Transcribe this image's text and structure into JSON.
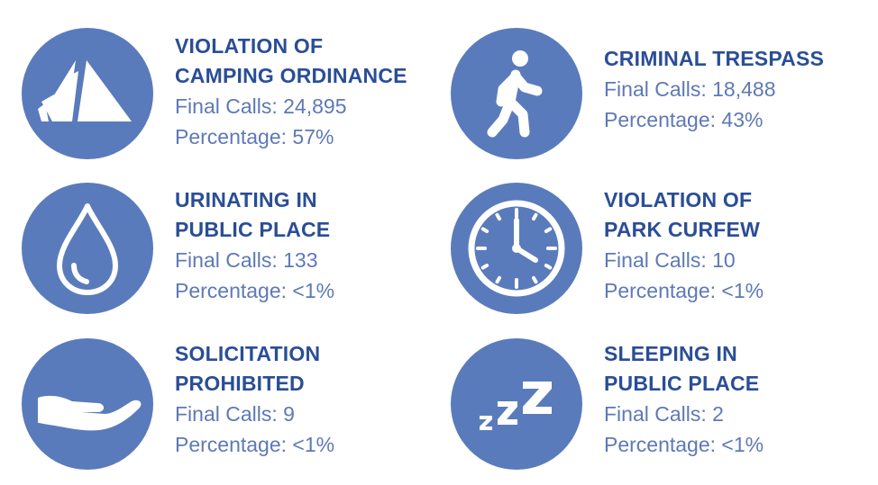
{
  "colors": {
    "circle": "#5a7bbb",
    "title": "#2a4e96",
    "stat": "#5e79b6",
    "icon": "#ffffff"
  },
  "items": [
    {
      "icon": "tent-icon",
      "title_lines": [
        "VIOLATION OF",
        "CAMPING ORDINANCE"
      ],
      "final_calls": "Final Calls: 24,895",
      "percentage": "Percentage: 57%"
    },
    {
      "icon": "walking-person-icon",
      "title_lines": [
        "CRIMINAL TRESPASS"
      ],
      "final_calls": "Final Calls: 18,488",
      "percentage": "Percentage: 43%"
    },
    {
      "icon": "water-drop-icon",
      "title_lines": [
        "URINATING IN",
        "PUBLIC PLACE"
      ],
      "final_calls": "Final Calls: 133",
      "percentage": "Percentage: <1%"
    },
    {
      "icon": "clock-icon",
      "title_lines": [
        "VIOLATION OF",
        "PARK CURFEW"
      ],
      "final_calls": "Final Calls: 10",
      "percentage": "Percentage: <1%"
    },
    {
      "icon": "open-hand-icon",
      "title_lines": [
        "SOLICITATION",
        "PROHIBITED"
      ],
      "final_calls": "Final Calls: 9",
      "percentage": "Percentage: <1%"
    },
    {
      "icon": "sleep-zzz-icon",
      "title_lines": [
        "SLEEPING IN",
        "PUBLIC PLACE"
      ],
      "final_calls": "Final Calls: 2",
      "percentage": "Percentage: <1%"
    }
  ]
}
